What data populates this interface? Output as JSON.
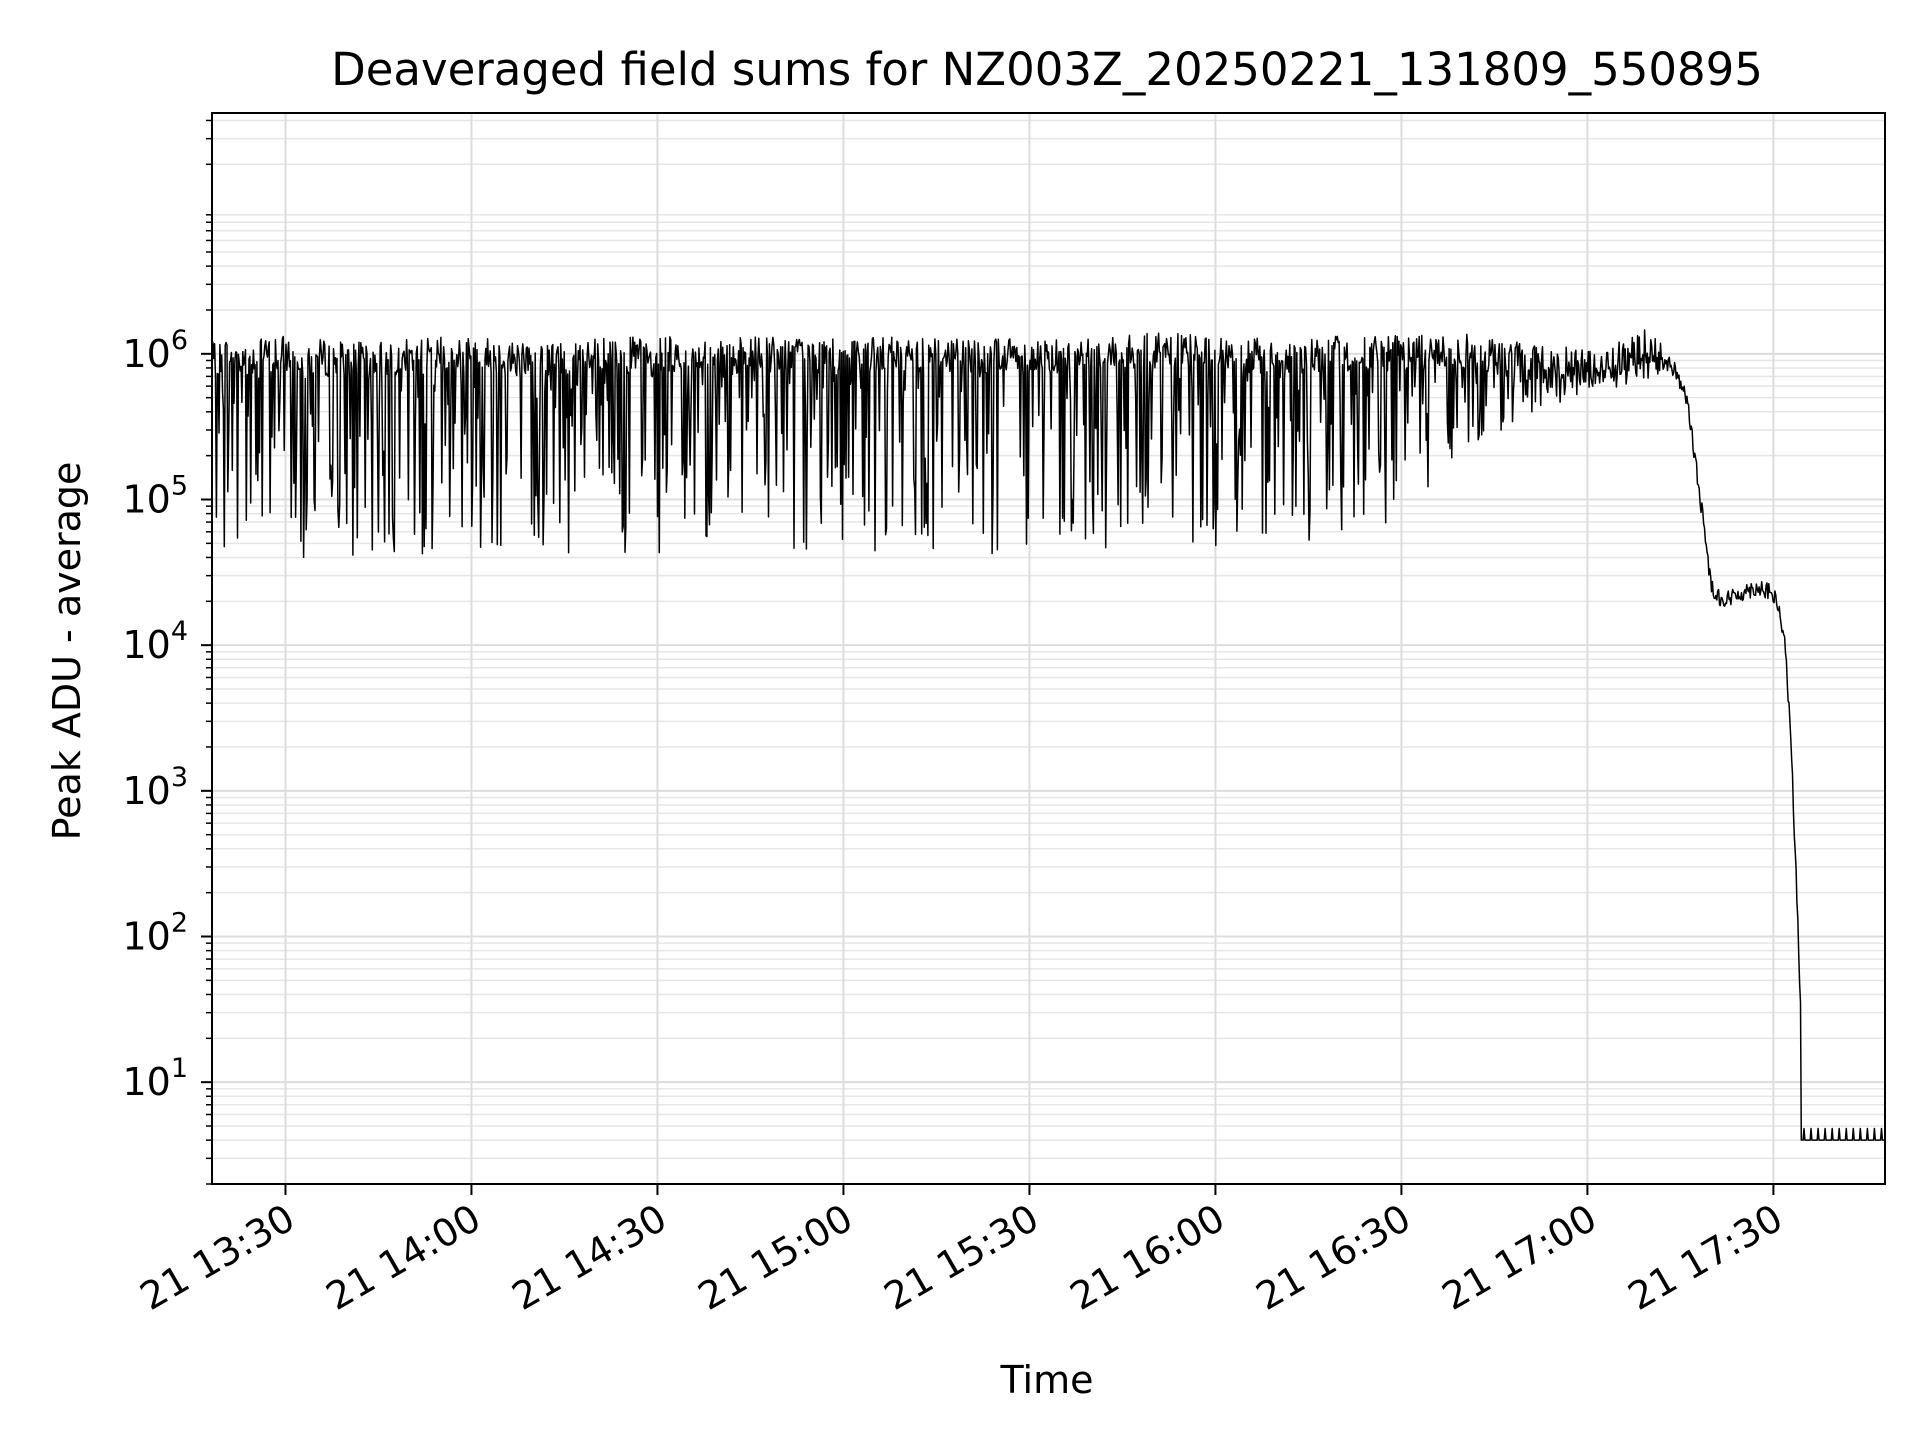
{
  "chart_data": {
    "type": "line",
    "title": "Deaveraged field sums for NZ003Z_20250221_131809_550895",
    "xlabel": "Time",
    "ylabel": "Peak ADU - average",
    "yscale": "log",
    "ylim": [
      2,
      45000000
    ],
    "xlim": [
      "2025-02-21 13:18:09",
      "2025-02-21 17:48:00"
    ],
    "grid": true,
    "line_color": "#000000",
    "x_ticks": [
      {
        "t": "2025-02-21 13:30",
        "label": "21 13:30"
      },
      {
        "t": "2025-02-21 14:00",
        "label": "21 14:00"
      },
      {
        "t": "2025-02-21 14:30",
        "label": "21 14:30"
      },
      {
        "t": "2025-02-21 15:00",
        "label": "21 15:00"
      },
      {
        "t": "2025-02-21 15:30",
        "label": "21 15:30"
      },
      {
        "t": "2025-02-21 16:00",
        "label": "21 16:00"
      },
      {
        "t": "2025-02-21 16:30",
        "label": "21 16:30"
      },
      {
        "t": "2025-02-21 17:00",
        "label": "21 17:00"
      },
      {
        "t": "2025-02-21 17:30",
        "label": "21 17:30"
      }
    ],
    "y_ticks": [
      {
        "value": 10,
        "base": "10",
        "exp": "1"
      },
      {
        "value": 100,
        "base": "10",
        "exp": "2"
      },
      {
        "value": 1000,
        "base": "10",
        "exp": "3"
      },
      {
        "value": 10000,
        "base": "10",
        "exp": "4"
      },
      {
        "value": 100000,
        "base": "10",
        "exp": "5"
      },
      {
        "value": 1000000,
        "base": "10",
        "exp": "6"
      }
    ],
    "series": [
      {
        "x": [
          "2025-02-21 13:18:09",
          "2025-02-21 13:20",
          "2025-02-21 13:25",
          "2025-02-21 13:30",
          "2025-02-21 13:40",
          "2025-02-21 13:50",
          "2025-02-21 14:00",
          "2025-02-21 14:10",
          "2025-02-21 14:20",
          "2025-02-21 14:30",
          "2025-02-21 14:40",
          "2025-02-21 14:50",
          "2025-02-21 15:00",
          "2025-02-21 15:10",
          "2025-02-21 15:20",
          "2025-02-21 15:30",
          "2025-02-21 15:40",
          "2025-02-21 15:50",
          "2025-02-21 16:00",
          "2025-02-21 16:10",
          "2025-02-21 16:20",
          "2025-02-21 16:30",
          "2025-02-21 16:40",
          "2025-02-21 16:50",
          "2025-02-21 17:00",
          "2025-02-21 17:05",
          "2025-02-21 17:10",
          "2025-02-21 17:12",
          "2025-02-21 17:14",
          "2025-02-21 17:16",
          "2025-02-21 17:18",
          "2025-02-21 17:20",
          "2025-02-21 17:22",
          "2025-02-21 17:24",
          "2025-02-21 17:26",
          "2025-02-21 17:28",
          "2025-02-21 17:30",
          "2025-02-21 17:31",
          "2025-02-21 17:32",
          "2025-02-21 17:33",
          "2025-02-21 17:34",
          "2025-02-21 17:35",
          "2025-02-21 17:40",
          "2025-02-21 17:48"
        ],
        "y": [
          900000,
          1000000,
          950000,
          1000000,
          900000,
          950000,
          1000000,
          900000,
          950000,
          1000000,
          950000,
          1000000,
          950000,
          1000000,
          1000000,
          950000,
          1000000,
          1050000,
          1000000,
          950000,
          1000000,
          1000000,
          1050000,
          900000,
          800000,
          900000,
          1100000,
          900000,
          800000,
          500000,
          120000,
          25000,
          20000,
          22000,
          24000,
          25000,
          22000,
          17000,
          9000,
          1500,
          100,
          4,
          4,
          4
        ],
        "min_envelope": [
          45000,
          40000,
          40000,
          40000,
          40000,
          42000,
          42000,
          42000,
          42000,
          42000,
          42000,
          42000,
          42000,
          42000,
          42000,
          42000,
          42000,
          42000,
          42000,
          45000,
          45000,
          50000,
          120000,
          250000,
          400000,
          550000,
          650000
        ]
      }
    ]
  }
}
